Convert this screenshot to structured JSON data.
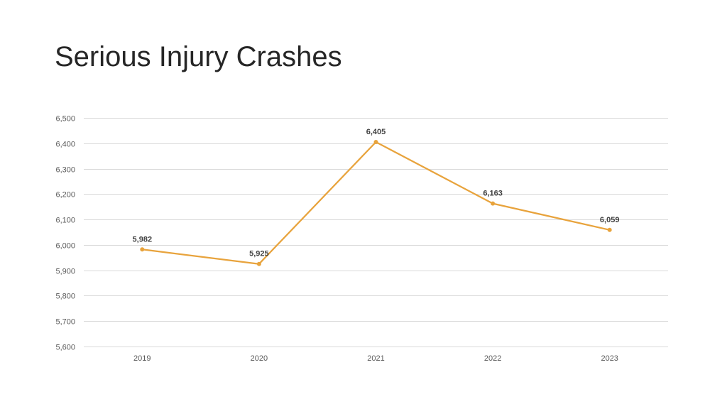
{
  "slide": {
    "title": "Serious Injury Crashes"
  },
  "colors": {
    "series_line": "#e8a33c",
    "gridline": "#d9d9d9",
    "title_text": "#262626",
    "tick_text": "#595959"
  },
  "chart_data": {
    "type": "line",
    "title": "",
    "xlabel": "",
    "ylabel": "",
    "categories": [
      "2019",
      "2020",
      "2021",
      "2022",
      "2023"
    ],
    "series": [
      {
        "values": [
          5982,
          5925,
          6405,
          6163,
          6059
        ],
        "data_labels": [
          "5,982",
          "5,925",
          "6,405",
          "6,163",
          "6,059"
        ],
        "color": "#e8a33c",
        "markers": true
      }
    ],
    "ylim": [
      5600,
      6500
    ],
    "y_ticks": [
      5600,
      5700,
      5800,
      5900,
      6000,
      6100,
      6200,
      6300,
      6400,
      6500
    ],
    "y_tick_labels": [
      "5,600",
      "5,700",
      "5,800",
      "5,900",
      "6,000",
      "6,100",
      "6,200",
      "6,300",
      "6,400",
      "6,500"
    ],
    "grid": true,
    "legend": "none"
  }
}
